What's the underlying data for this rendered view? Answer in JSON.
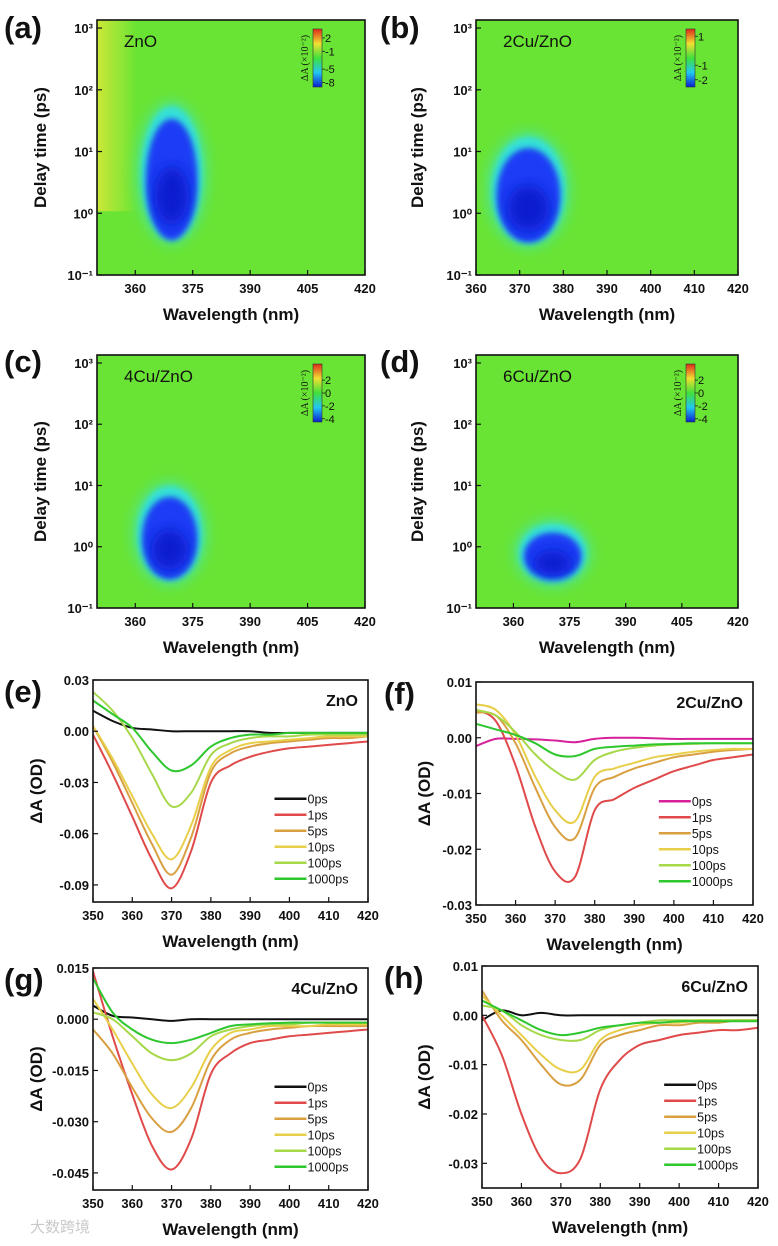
{
  "watermark": "大数跨境",
  "colors": {
    "heat_bg": "#69e434",
    "heat_halo": "#35e0d8",
    "heat_core": "#1a3cf5",
    "heat_deep": "#0a1fd0",
    "series": {
      "0ps": "#111111",
      "0ps_magenta": "#d6219a",
      "1ps": "#e04a4a",
      "5ps": "#d9a042",
      "10ps": "#e8cf4a",
      "100ps": "#a6d84a",
      "1000ps": "#2ec72e"
    }
  },
  "chart_data": [
    {
      "panel": "(a)",
      "type": "heatmap",
      "sample": "ZnO",
      "xlabel": "Wavelength (nm)",
      "ylabel": "Delay time (ps)",
      "xlim": [
        350,
        420
      ],
      "xticks": [
        360,
        375,
        390,
        405,
        420
      ],
      "xtick_labels": [
        "360",
        "375",
        "390",
        "405",
        "420"
      ],
      "ylim": [
        0.1,
        1350
      ],
      "yscale": "log",
      "yticks": [
        0.1,
        1,
        10,
        100,
        1000
      ],
      "ytick_labels": [
        "10⁻¹",
        "10⁰",
        "10¹",
        "10²",
        "10³"
      ],
      "colorbar": {
        "label": "ΔA (×10⁻²)",
        "ticks": [
          "2",
          "-1",
          "-5",
          "-8"
        ],
        "range": [
          -9,
          4
        ]
      },
      "bleach_region": {
        "wavelength_range": [
          362,
          377
        ],
        "delay_range_ps": [
          0.4,
          50
        ],
        "min_value": -8
      }
    },
    {
      "panel": "(b)",
      "type": "heatmap",
      "sample": "2Cu/ZnO",
      "xlabel": "Wavelength (nm)",
      "ylabel": "Delay time (ps)",
      "xlim": [
        360,
        420
      ],
      "xticks": [
        360,
        370,
        380,
        390,
        400,
        410,
        420
      ],
      "xtick_labels": [
        "360",
        "370",
        "380",
        "390",
        "400",
        "410",
        "420"
      ],
      "ylim": [
        0.1,
        1350
      ],
      "yscale": "log",
      "yticks": [
        0.1,
        1,
        10,
        100,
        1000
      ],
      "ytick_labels": [
        "10⁻¹",
        "10⁰",
        "10¹",
        "10²",
        "10³"
      ],
      "colorbar": {
        "label": "ΔA (×10⁻²)",
        "ticks": [
          "1",
          "-1",
          "-2"
        ],
        "range": [
          -2.5,
          1.5
        ]
      },
      "bleach_region": {
        "wavelength_range": [
          364,
          380
        ],
        "delay_range_ps": [
          0.35,
          16
        ],
        "min_value": -2
      }
    },
    {
      "panel": "(c)",
      "type": "heatmap",
      "sample": "4Cu/ZnO",
      "xlabel": "Wavelength (nm)",
      "ylabel": "Delay time (ps)",
      "xlim": [
        350,
        420
      ],
      "xticks": [
        360,
        375,
        390,
        405,
        420
      ],
      "xtick_labels": [
        "360",
        "375",
        "390",
        "405",
        "420"
      ],
      "ylim": [
        0.1,
        1350
      ],
      "yscale": "log",
      "yticks": [
        0.1,
        1,
        10,
        100,
        1000
      ],
      "ytick_labels": [
        "10⁻¹",
        "10⁰",
        "10¹",
        "10²",
        "10³"
      ],
      "colorbar": {
        "label": "ΔA (×10⁻²)",
        "ticks": [
          "2",
          "0",
          "-2",
          "-4"
        ],
        "range": [
          -4.5,
          4.5
        ]
      },
      "bleach_region": {
        "wavelength_range": [
          361,
          377
        ],
        "delay_range_ps": [
          0.3,
          9
        ],
        "min_value": -4
      }
    },
    {
      "panel": "(d)",
      "type": "heatmap",
      "sample": "6Cu/ZnO",
      "xlabel": "Wavelength (nm)",
      "ylabel": "Delay time (ps)",
      "xlim": [
        350,
        420
      ],
      "xticks": [
        360,
        375,
        390,
        405,
        420
      ],
      "xtick_labels": [
        "360",
        "375",
        "390",
        "405",
        "420"
      ],
      "ylim": [
        0.1,
        1350
      ],
      "yscale": "log",
      "yticks": [
        0.1,
        1,
        10,
        100,
        1000
      ],
      "ytick_labels": [
        "10⁻¹",
        "10⁰",
        "10¹",
        "10²",
        "10³"
      ],
      "colorbar": {
        "label": "ΔA (×10⁻²)",
        "ticks": [
          "2",
          "0",
          "-2",
          "-4"
        ],
        "range": [
          -4.5,
          4.5
        ]
      },
      "bleach_region": {
        "wavelength_range": [
          362,
          379
        ],
        "delay_range_ps": [
          0.28,
          2.2
        ],
        "min_value": -4
      }
    },
    {
      "panel": "(e)",
      "type": "line",
      "sample": "ZnO",
      "xlabel": "Wavelength (nm)",
      "ylabel": "ΔA (OD)",
      "xlim": [
        350,
        420
      ],
      "xticks": [
        350,
        360,
        370,
        380,
        390,
        400,
        410,
        420
      ],
      "xtick_labels": [
        "350",
        "360",
        "370",
        "380",
        "390",
        "400",
        "410",
        "420"
      ],
      "ylim": [
        -0.1,
        0.03
      ],
      "yticks": [
        0.03,
        0,
        -0.03,
        -0.06,
        -0.09
      ],
      "ytick_labels": [
        "0.03",
        "0.00",
        "-0.03",
        "-0.06",
        "-0.09"
      ],
      "legend": "lower-right",
      "x": [
        350,
        355,
        360,
        365,
        370,
        375,
        380,
        385,
        390,
        395,
        400,
        405,
        410,
        415,
        420
      ],
      "series": [
        {
          "name": "0ps",
          "color": "#111111",
          "values": [
            0.012,
            0.006,
            0.002,
            0.001,
            0,
            0,
            0,
            0,
            0,
            -0.001,
            -0.001,
            -0.001,
            -0.001,
            -0.001,
            -0.001
          ]
        },
        {
          "name": "1ps",
          "color": "#e04a4a",
          "values": [
            -0.002,
            -0.025,
            -0.05,
            -0.075,
            -0.092,
            -0.07,
            -0.03,
            -0.02,
            -0.015,
            -0.012,
            -0.01,
            -0.009,
            -0.008,
            -0.007,
            -0.006
          ]
        },
        {
          "name": "5ps",
          "color": "#d9a042",
          "values": [
            0.003,
            -0.018,
            -0.042,
            -0.066,
            -0.084,
            -0.062,
            -0.024,
            -0.013,
            -0.009,
            -0.007,
            -0.006,
            -0.005,
            -0.004,
            -0.004,
            -0.003
          ]
        },
        {
          "name": "10ps",
          "color": "#e8cf4a",
          "values": [
            0.003,
            -0.016,
            -0.038,
            -0.06,
            -0.075,
            -0.055,
            -0.021,
            -0.011,
            -0.007,
            -0.006,
            -0.005,
            -0.004,
            -0.003,
            -0.003,
            -0.003
          ]
        },
        {
          "name": "100ps",
          "color": "#a6d84a",
          "values": [
            0.023,
            0.012,
            -0.004,
            -0.025,
            -0.044,
            -0.036,
            -0.014,
            -0.007,
            -0.004,
            -0.003,
            -0.003,
            -0.002,
            -0.002,
            -0.002,
            -0.002
          ]
        },
        {
          "name": "1000ps",
          "color": "#2ec72e",
          "values": [
            0.018,
            0.01,
            0.002,
            -0.012,
            -0.023,
            -0.02,
            -0.009,
            -0.004,
            -0.002,
            -0.002,
            -0.001,
            -0.001,
            -0.001,
            -0.001,
            -0.001
          ]
        }
      ]
    },
    {
      "panel": "(f)",
      "type": "line",
      "sample": "2Cu/ZnO",
      "xlabel": "Wavelength (nm)",
      "ylabel": "ΔA (OD)",
      "xlim": [
        350,
        420
      ],
      "xticks": [
        350,
        360,
        370,
        380,
        390,
        400,
        410,
        420
      ],
      "xtick_labels": [
        "350",
        "360",
        "370",
        "380",
        "390",
        "400",
        "410",
        "420"
      ],
      "ylim": [
        -0.03,
        0.01
      ],
      "yticks": [
        0.01,
        0,
        -0.01,
        -0.02,
        -0.03
      ],
      "ytick_labels": [
        "0.01",
        "0.00",
        "-0.01",
        "-0.02",
        "-0.03"
      ],
      "legend": "lower-right",
      "x": [
        350,
        355,
        360,
        365,
        370,
        375,
        380,
        385,
        390,
        395,
        400,
        405,
        410,
        415,
        420
      ],
      "series": [
        {
          "name": "0ps",
          "color": "#d6219a",
          "values": [
            -0.0015,
            -0.0002,
            -0.0002,
            -0.0003,
            -0.0005,
            -0.0008,
            -0.0002,
            0,
            0,
            -0.0001,
            -0.0002,
            -0.0002,
            -0.0002,
            -0.0002,
            -0.0002
          ]
        },
        {
          "name": "1ps",
          "color": "#e04a4a",
          "values": [
            0.005,
            0.003,
            -0.005,
            -0.016,
            -0.024,
            -0.025,
            -0.013,
            -0.011,
            -0.009,
            -0.0075,
            -0.006,
            -0.005,
            -0.004,
            -0.0035,
            -0.003
          ]
        },
        {
          "name": "5ps",
          "color": "#d9a042",
          "values": [
            0.0045,
            0.004,
            -0.001,
            -0.009,
            -0.016,
            -0.018,
            -0.009,
            -0.007,
            -0.0055,
            -0.0045,
            -0.0035,
            -0.003,
            -0.0025,
            -0.0022,
            -0.002
          ]
        },
        {
          "name": "10ps",
          "color": "#e8cf4a",
          "values": [
            0.006,
            0.005,
            0.0005,
            -0.007,
            -0.013,
            -0.015,
            -0.007,
            -0.0055,
            -0.0045,
            -0.0035,
            -0.003,
            -0.0025,
            -0.0022,
            -0.002,
            -0.002
          ]
        },
        {
          "name": "100ps",
          "color": "#a6d84a",
          "values": [
            0.005,
            0.004,
            0.001,
            -0.003,
            -0.006,
            -0.0075,
            -0.004,
            -0.0025,
            -0.0018,
            -0.0014,
            -0.0012,
            -0.0011,
            -0.001,
            -0.001,
            -0.001
          ]
        },
        {
          "name": "1000ps",
          "color": "#2ec72e",
          "values": [
            0.0025,
            0.0015,
            0.0005,
            -0.001,
            -0.003,
            -0.0033,
            -0.002,
            -0.0016,
            -0.0014,
            -0.0012,
            -0.0011,
            -0.001,
            -0.001,
            -0.001,
            -0.001
          ]
        }
      ]
    },
    {
      "panel": "(g)",
      "type": "line",
      "sample": "4Cu/ZnO",
      "xlabel": "Wavelength (nm)",
      "ylabel": "ΔA (OD)",
      "xlim": [
        350,
        420
      ],
      "xticks": [
        350,
        360,
        370,
        380,
        390,
        400,
        410,
        420
      ],
      "xtick_labels": [
        "350",
        "360",
        "370",
        "380",
        "390",
        "400",
        "410",
        "420"
      ],
      "ylim": [
        -0.05,
        0.015
      ],
      "yticks": [
        0.015,
        0,
        -0.015,
        -0.03,
        -0.045
      ],
      "ytick_labels": [
        "0.015",
        "0.000",
        "-0.015",
        "-0.030",
        "-0.045"
      ],
      "legend": "lower-right",
      "x": [
        350,
        355,
        360,
        365,
        370,
        375,
        380,
        385,
        390,
        395,
        400,
        405,
        410,
        415,
        420
      ],
      "series": [
        {
          "name": "0ps",
          "color": "#111111",
          "values": [
            0.004,
            0.001,
            0.0005,
            0,
            -0.0005,
            0,
            0,
            0,
            0,
            0,
            0,
            0,
            0,
            0,
            0
          ]
        },
        {
          "name": "1ps",
          "color": "#e04a4a",
          "values": [
            0.014,
            -0.005,
            -0.022,
            -0.037,
            -0.044,
            -0.035,
            -0.016,
            -0.01,
            -0.007,
            -0.006,
            -0.005,
            -0.0045,
            -0.004,
            -0.0035,
            -0.003
          ]
        },
        {
          "name": "5ps",
          "color": "#d9a042",
          "values": [
            -0.003,
            -0.01,
            -0.02,
            -0.029,
            -0.033,
            -0.026,
            -0.012,
            -0.006,
            -0.004,
            -0.003,
            -0.0025,
            -0.002,
            -0.002,
            -0.002,
            -0.002
          ]
        },
        {
          "name": "10ps",
          "color": "#e8cf4a",
          "values": [
            0.006,
            -0.003,
            -0.013,
            -0.022,
            -0.026,
            -0.02,
            -0.009,
            -0.004,
            -0.003,
            -0.002,
            -0.002,
            -0.002,
            -0.0015,
            -0.0015,
            -0.0015
          ]
        },
        {
          "name": "100ps",
          "color": "#a6d84a",
          "values": [
            0.002,
            0,
            -0.005,
            -0.01,
            -0.012,
            -0.01,
            -0.005,
            -0.003,
            -0.002,
            -0.0015,
            -0.0015,
            -0.001,
            -0.001,
            -0.001,
            -0.001
          ]
        },
        {
          "name": "1000ps",
          "color": "#2ec72e",
          "values": [
            0.012,
            0.002,
            -0.003,
            -0.006,
            -0.007,
            -0.006,
            -0.004,
            -0.002,
            -0.0015,
            -0.0012,
            -0.001,
            -0.001,
            -0.001,
            -0.001,
            -0.001
          ]
        }
      ]
    },
    {
      "panel": "(h)",
      "type": "line",
      "sample": "6Cu/ZnO",
      "xlabel": "Wavelength (nm)",
      "ylabel": "ΔA (OD)",
      "xlim": [
        350,
        420
      ],
      "xticks": [
        350,
        360,
        370,
        380,
        390,
        400,
        410,
        420
      ],
      "xtick_labels": [
        "350",
        "360",
        "370",
        "380",
        "390",
        "400",
        "410",
        "420"
      ],
      "ylim": [
        -0.035,
        0.01
      ],
      "yticks": [
        0.01,
        0,
        -0.01,
        -0.02,
        -0.03
      ],
      "ytick_labels": [
        "0.01",
        "0.00",
        "-0.01",
        "-0.02",
        "-0.03"
      ],
      "legend": "lower-right",
      "x": [
        350,
        355,
        360,
        365,
        370,
        375,
        380,
        385,
        390,
        395,
        400,
        405,
        410,
        415,
        420
      ],
      "series": [
        {
          "name": "0ps",
          "color": "#111111",
          "values": [
            -0.001,
            0.001,
            0,
            0.0005,
            0,
            0,
            0,
            0,
            0,
            0,
            0,
            0,
            0,
            0,
            0
          ]
        },
        {
          "name": "1ps",
          "color": "#e04a4a",
          "values": [
            0,
            -0.008,
            -0.02,
            -0.029,
            -0.032,
            -0.029,
            -0.015,
            -0.009,
            -0.006,
            -0.005,
            -0.004,
            -0.0035,
            -0.003,
            -0.003,
            -0.0025
          ]
        },
        {
          "name": "5ps",
          "color": "#d9a042",
          "values": [
            0.005,
            -0.001,
            -0.005,
            -0.01,
            -0.014,
            -0.013,
            -0.006,
            -0.004,
            -0.003,
            -0.002,
            -0.002,
            -0.0015,
            -0.0015,
            -0.001,
            -0.001
          ]
        },
        {
          "name": "10ps",
          "color": "#e8cf4a",
          "values": [
            0.004,
            0,
            -0.004,
            -0.008,
            -0.011,
            -0.011,
            -0.005,
            -0.003,
            -0.002,
            -0.0015,
            -0.0015,
            -0.001,
            -0.001,
            -0.001,
            -0.001
          ]
        },
        {
          "name": "100ps",
          "color": "#a6d84a",
          "values": [
            0.002,
            0.001,
            -0.002,
            -0.004,
            -0.005,
            -0.005,
            -0.003,
            -0.002,
            -0.0015,
            -0.001,
            -0.001,
            -0.001,
            -0.001,
            -0.001,
            -0.001
          ]
        },
        {
          "name": "1000ps",
          "color": "#2ec72e",
          "values": [
            0.003,
            0.001,
            -0.001,
            -0.003,
            -0.004,
            -0.0035,
            -0.0025,
            -0.002,
            -0.0015,
            -0.0015,
            -0.0012,
            -0.0012,
            -0.0012,
            -0.0012,
            -0.0012
          ]
        }
      ]
    }
  ]
}
